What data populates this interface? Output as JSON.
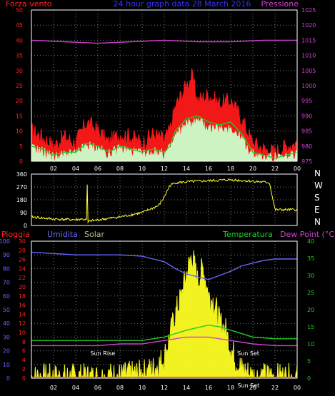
{
  "header": {
    "wind_label": "Forza vento",
    "subtitle": "24 hour graph data 28 March 2016",
    "pressure_label": "Pressione"
  },
  "compass": [
    "N",
    "W",
    "S",
    "E",
    "N"
  ],
  "bottom_labels": {
    "rain": "Pioggia",
    "humidity": "Umidita",
    "solar": "Solar",
    "temperature": "Temperatura",
    "dewpoint": "Dew Point (°C)",
    "sunrise": "Sun Rise",
    "sunset": "Sun Set",
    "sunset_time_overlap": "Sun Set"
  },
  "colors": {
    "wind_gust": "#ff1a1a",
    "wind_avg": "#22cc22",
    "wind_speed": "#ccffcc",
    "pressure": "#cc44cc",
    "direction": "#ffff33",
    "humidity": "#6666ff",
    "temperature": "#22cc22",
    "dewpoint": "#cc44cc",
    "solar": "#ffff22",
    "rain": "#ff2222"
  },
  "chart_data": [
    {
      "type": "line",
      "name": "wind-pressure",
      "x_ticks": [
        "02",
        "04",
        "06",
        "08",
        "10",
        "12",
        "14",
        "16",
        "18",
        "20",
        "22",
        "00"
      ],
      "y_left_ticks": [
        0,
        5,
        10,
        15,
        20,
        25,
        30,
        35,
        40,
        45,
        50
      ],
      "y_right_ticks": [
        975,
        980,
        985,
        990,
        995,
        1000,
        1005,
        1010,
        1015,
        1020,
        1025
      ],
      "ylim_left": [
        0,
        50
      ],
      "ylim_right": [
        975,
        1025
      ],
      "xlim_hours": [
        0,
        24
      ],
      "pressure": {
        "x": [
          0,
          3,
          6,
          9,
          12,
          15,
          18,
          21,
          24
        ],
        "y": [
          1015,
          1014.5,
          1014,
          1014.5,
          1015,
          1014.5,
          1014.5,
          1015,
          1015
        ]
      },
      "wind_gust": {
        "x": [
          0,
          1,
          2,
          3,
          4,
          5,
          6,
          7,
          8,
          9,
          10,
          11,
          12,
          12.5,
          13,
          14,
          14.5,
          15,
          16,
          17,
          18,
          19,
          20,
          21,
          22,
          23,
          24
        ],
        "y": [
          10,
          8,
          5,
          8,
          6,
          13,
          10,
          6,
          9,
          8,
          6,
          9,
          7,
          10,
          18,
          25,
          28,
          20,
          22,
          19,
          20,
          14,
          6,
          4,
          3,
          5,
          6
        ]
      },
      "wind_avg": {
        "x": [
          0,
          1,
          2,
          3,
          4,
          5,
          6,
          7,
          8,
          9,
          10,
          11,
          12,
          12.5,
          13,
          14,
          15,
          16,
          17,
          18,
          19,
          20,
          21,
          22,
          23,
          24
        ],
        "y": [
          5,
          4,
          2,
          3,
          3,
          6,
          5,
          3,
          5,
          4,
          3,
          4,
          3,
          5,
          10,
          14,
          15,
          13,
          12,
          13,
          9,
          3,
          2,
          1,
          2,
          3
        ]
      },
      "wind_speed": {
        "x": [
          0,
          1,
          2,
          3,
          4,
          5,
          6,
          7,
          8,
          9,
          10,
          11,
          12,
          12.5,
          13,
          14,
          15,
          16,
          17,
          18,
          19,
          20,
          21,
          22,
          23,
          24
        ],
        "y": [
          4,
          3,
          1,
          2,
          2,
          5,
          4,
          2,
          4,
          3,
          2,
          3,
          2,
          4,
          8,
          12,
          13,
          11,
          10,
          11,
          7,
          2,
          1,
          1,
          1,
          2
        ]
      }
    },
    {
      "type": "line",
      "name": "wind-direction",
      "y_ticks": [
        0,
        90,
        180,
        270,
        360
      ],
      "ylim": [
        0,
        360
      ],
      "xlim_hours": [
        0,
        24
      ],
      "direction": {
        "x": [
          0,
          2,
          4,
          4.5,
          5,
          5.05,
          5.1,
          5.2,
          8,
          10,
          11.5,
          12,
          12.5,
          13,
          15,
          18,
          20,
          21.5,
          22,
          24
        ],
        "y": [
          60,
          45,
          40,
          45,
          40,
          340,
          20,
          30,
          60,
          90,
          140,
          200,
          280,
          300,
          310,
          320,
          310,
          300,
          110,
          110
        ]
      }
    },
    {
      "type": "line",
      "name": "humidity-temperature-solar",
      "y_left_ticks": [
        0,
        10,
        20,
        30,
        40,
        50,
        60,
        70,
        80,
        90,
        100
      ],
      "y_mid_ticks": [
        0,
        2,
        4,
        6,
        8,
        10,
        12,
        14,
        16,
        18,
        20,
        22,
        24,
        26,
        28,
        30
      ],
      "y_right_ticks": [
        0,
        5,
        10,
        15,
        20,
        25,
        30,
        35,
        40
      ],
      "ylim_humidity": [
        0,
        100
      ],
      "ylim_temperature": [
        0,
        40
      ],
      "xlim_hours": [
        0,
        24
      ],
      "humidity": {
        "x": [
          0,
          2,
          4,
          6,
          8,
          10,
          11,
          12,
          13,
          14,
          15,
          16,
          17,
          18,
          19,
          20,
          21,
          22,
          24
        ],
        "y": [
          92,
          91,
          90,
          90,
          90,
          89,
          87,
          85,
          80,
          76,
          74,
          72,
          75,
          78,
          82,
          84,
          86,
          87,
          87
        ]
      },
      "temperature": {
        "x": [
          0,
          2,
          4,
          6,
          8,
          10,
          12,
          14,
          16,
          17,
          18,
          19,
          20,
          22,
          24
        ],
        "y": [
          11,
          11,
          11,
          11,
          11,
          11,
          12,
          14,
          15.5,
          15,
          14,
          13,
          12,
          11.5,
          11.5
        ]
      },
      "dewpoint": {
        "x": [
          0,
          2,
          4,
          6,
          8,
          10,
          12,
          14,
          16,
          18,
          20,
          22,
          24
        ],
        "y": [
          9.5,
          9.5,
          9.5,
          9.5,
          10,
          10,
          11,
          12,
          12,
          11,
          10,
          9.5,
          9.5
        ]
      },
      "solar": {
        "x": [
          0,
          6.5,
          7,
          8,
          9,
          10,
          11,
          12,
          12.5,
          13,
          13.5,
          14,
          14.5,
          15,
          15.5,
          16,
          16.5,
          17,
          17.5,
          18,
          18.5,
          19,
          20,
          24
        ],
        "y": [
          0,
          0,
          1,
          1,
          2,
          3,
          6,
          14,
          30,
          46,
          58,
          75,
          90,
          70,
          80,
          60,
          55,
          40,
          35,
          22,
          12,
          6,
          1,
          0
        ]
      },
      "rain": {
        "x": [
          0,
          24
        ],
        "y": [
          0.5,
          0.5
        ]
      },
      "sunrise_hour": 6.7,
      "sunset_hour": 19.2
    }
  ]
}
